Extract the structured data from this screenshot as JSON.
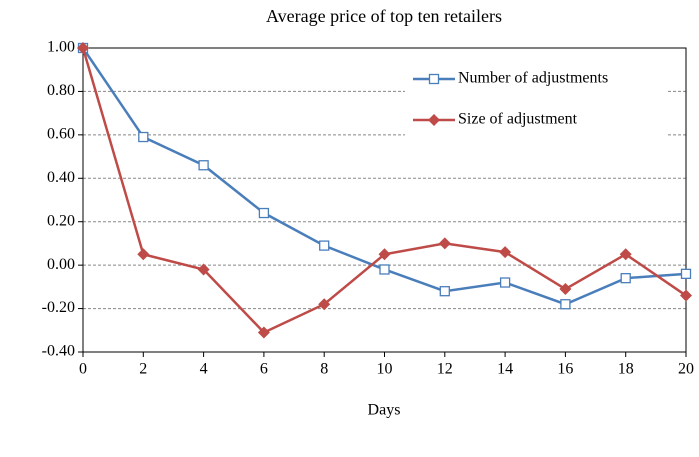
{
  "chart_data": {
    "type": "line",
    "title": "Average price of top ten retailers",
    "xlabel": "Days",
    "x": [
      0,
      2,
      4,
      6,
      8,
      10,
      12,
      14,
      16,
      18,
      20
    ],
    "series": [
      {
        "name": "Number of adjustments",
        "color": "#4a7ebb",
        "marker": "square",
        "values": [
          1.0,
          0.59,
          0.46,
          0.24,
          0.09,
          -0.02,
          -0.12,
          -0.08,
          -0.18,
          -0.06,
          -0.04
        ]
      },
      {
        "name": "Size of adjustment",
        "color": "#be4b48",
        "marker": "diamond",
        "values": [
          1.0,
          0.05,
          -0.02,
          -0.31,
          -0.18,
          0.05,
          0.1,
          0.06,
          -0.11,
          0.05,
          -0.14
        ]
      }
    ],
    "xlim": [
      0,
      20
    ],
    "xticks": [
      0,
      2,
      4,
      6,
      8,
      10,
      12,
      14,
      16,
      18,
      20
    ],
    "ylim": [
      -0.4,
      1.0
    ],
    "yticks": [
      {
        "value": -0.4,
        "label": "-0.40"
      },
      {
        "value": -0.2,
        "label": "-0.20"
      },
      {
        "value": 0,
        "label": "0.00"
      },
      {
        "value": 0.2,
        "label": "0.20"
      },
      {
        "value": 0.4,
        "label": "0.40"
      },
      {
        "value": 0.6,
        "label": "0.60"
      },
      {
        "value": 0.8,
        "label": "0.80"
      },
      {
        "value": 1.0,
        "label": "1.00"
      }
    ],
    "grid": true,
    "legend": "upper right"
  }
}
